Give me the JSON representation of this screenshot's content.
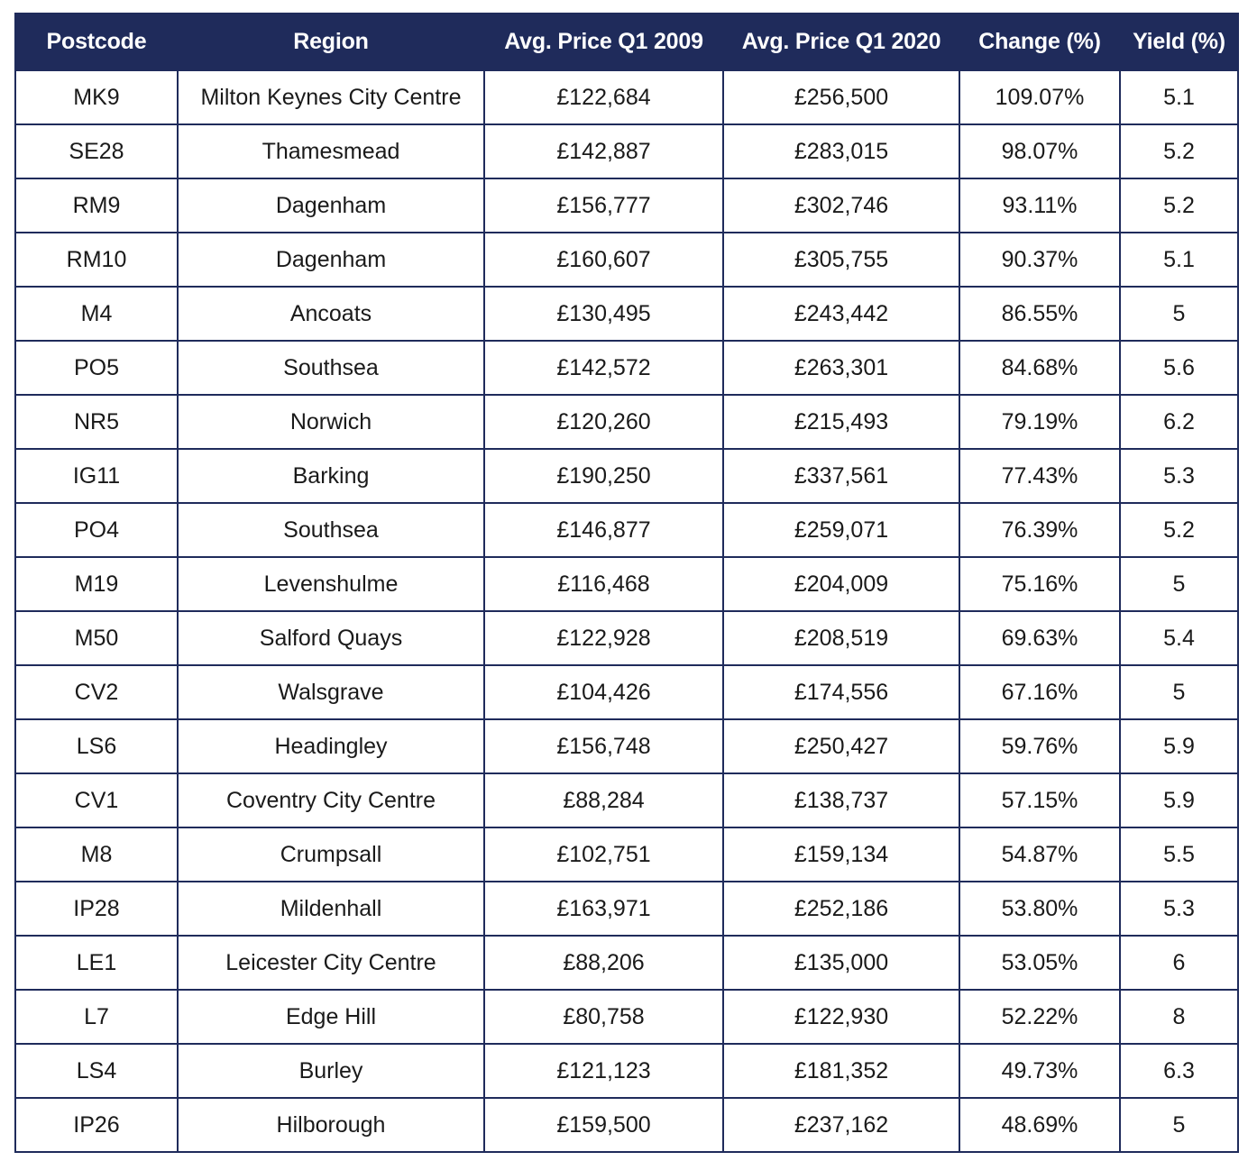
{
  "table": {
    "columns": [
      "Postcode",
      "Region",
      "Avg. Price Q1 2009",
      "Avg. Price Q1 2020",
      "Change (%)",
      "Yield (%)"
    ],
    "rows": [
      [
        "MK9",
        "Milton Keynes City Centre",
        "£122,684",
        "£256,500",
        "109.07%",
        "5.1"
      ],
      [
        "SE28",
        "Thamesmead",
        "£142,887",
        "£283,015",
        "98.07%",
        "5.2"
      ],
      [
        "RM9",
        "Dagenham",
        "£156,777",
        "£302,746",
        "93.11%",
        "5.2"
      ],
      [
        "RM10",
        "Dagenham",
        "£160,607",
        "£305,755",
        "90.37%",
        "5.1"
      ],
      [
        "M4",
        "Ancoats",
        "£130,495",
        "£243,442",
        "86.55%",
        "5"
      ],
      [
        "PO5",
        "Southsea",
        "£142,572",
        "£263,301",
        "84.68%",
        "5.6"
      ],
      [
        "NR5",
        "Norwich",
        "£120,260",
        "£215,493",
        "79.19%",
        "6.2"
      ],
      [
        "IG11",
        "Barking",
        "£190,250",
        "£337,561",
        "77.43%",
        "5.3"
      ],
      [
        "PO4",
        "Southsea",
        "£146,877",
        "£259,071",
        "76.39%",
        "5.2"
      ],
      [
        "M19",
        "Levenshulme",
        "£116,468",
        "£204,009",
        "75.16%",
        "5"
      ],
      [
        "M50",
        "Salford Quays",
        "£122,928",
        "£208,519",
        "69.63%",
        "5.4"
      ],
      [
        "CV2",
        "Walsgrave",
        "£104,426",
        "£174,556",
        "67.16%",
        "5"
      ],
      [
        "LS6",
        "Headingley",
        "£156,748",
        "£250,427",
        "59.76%",
        "5.9"
      ],
      [
        "CV1",
        "Coventry City Centre",
        "£88,284",
        "£138,737",
        "57.15%",
        "5.9"
      ],
      [
        "M8",
        "Crumpsall",
        "£102,751",
        "£159,134",
        "54.87%",
        "5.5"
      ],
      [
        "IP28",
        "Mildenhall",
        "£163,971",
        "£252,186",
        "53.80%",
        "5.3"
      ],
      [
        "LE1",
        "Leicester City Centre",
        "£88,206",
        "£135,000",
        "53.05%",
        "6"
      ],
      [
        "L7",
        "Edge Hill",
        "£80,758",
        "£122,930",
        "52.22%",
        "8"
      ],
      [
        "LS4",
        "Burley",
        "£121,123",
        "£181,352",
        "49.73%",
        "6.3"
      ],
      [
        "IP26",
        "Hilborough",
        "£159,500",
        "£237,162",
        "48.69%",
        "5"
      ]
    ]
  },
  "colors": {
    "header_background": "#1f2b5b",
    "header_text": "#ffffff",
    "border": "#1f2b5b",
    "cell_text": "#1a1a1a"
  }
}
